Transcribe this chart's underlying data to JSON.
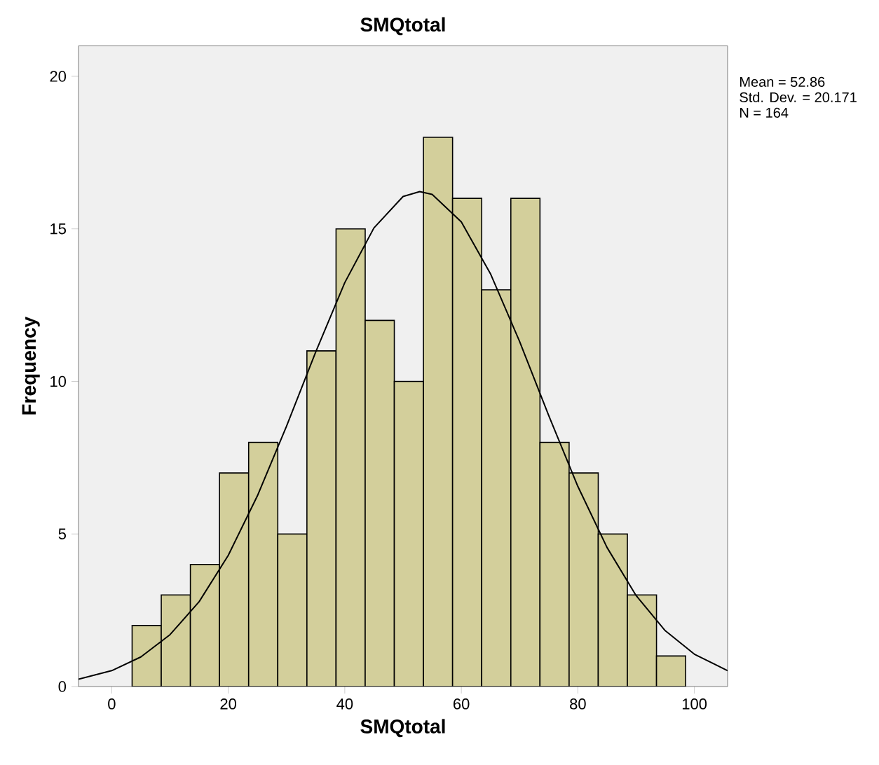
{
  "chart_data": {
    "type": "histogram",
    "title": "SMQtotal",
    "xlabel": "SMQtotal",
    "ylabel": "Frequency",
    "bins": [
      3.5,
      8.5,
      13.5,
      18.5,
      23.5,
      28.5,
      33.5,
      38.5,
      43.5,
      48.5,
      53.5,
      58.5,
      63.5,
      68.5,
      73.5,
      78.5,
      83.5,
      88.5,
      93.5,
      98.5
    ],
    "values": [
      2,
      3,
      4,
      7,
      8,
      5,
      11,
      15,
      12,
      10,
      18,
      16,
      13,
      16,
      8,
      7,
      5,
      3,
      1
    ],
    "color": "#d3cf9b",
    "series": [
      {
        "type": "line",
        "color": "#000000",
        "x": [
          -5.7,
          0,
          5,
          10,
          15,
          20,
          25,
          30,
          35,
          40,
          45,
          50,
          52.86,
          55,
          60,
          65,
          70,
          75,
          80,
          85,
          90,
          95,
          100,
          105.7
        ],
        "values": [
          0.24,
          0.52,
          0.97,
          1.7,
          2.78,
          4.3,
          6.25,
          8.53,
          10.96,
          13.24,
          15.03,
          16.06,
          16.22,
          16.13,
          15.23,
          13.53,
          11.31,
          8.88,
          6.56,
          4.56,
          2.98,
          1.83,
          1.06,
          0.52
        ]
      }
    ],
    "xlim": [
      -5.7,
      105.7
    ],
    "ylim": [
      0,
      21
    ],
    "xticks": [
      0,
      20,
      40,
      60,
      80,
      100
    ],
    "yticks": [
      0,
      5,
      10,
      15,
      20
    ],
    "grid": false,
    "annotations": [
      "Mean = 52.86",
      "Std. Dev. = 20.171",
      "N = 164"
    ]
  }
}
